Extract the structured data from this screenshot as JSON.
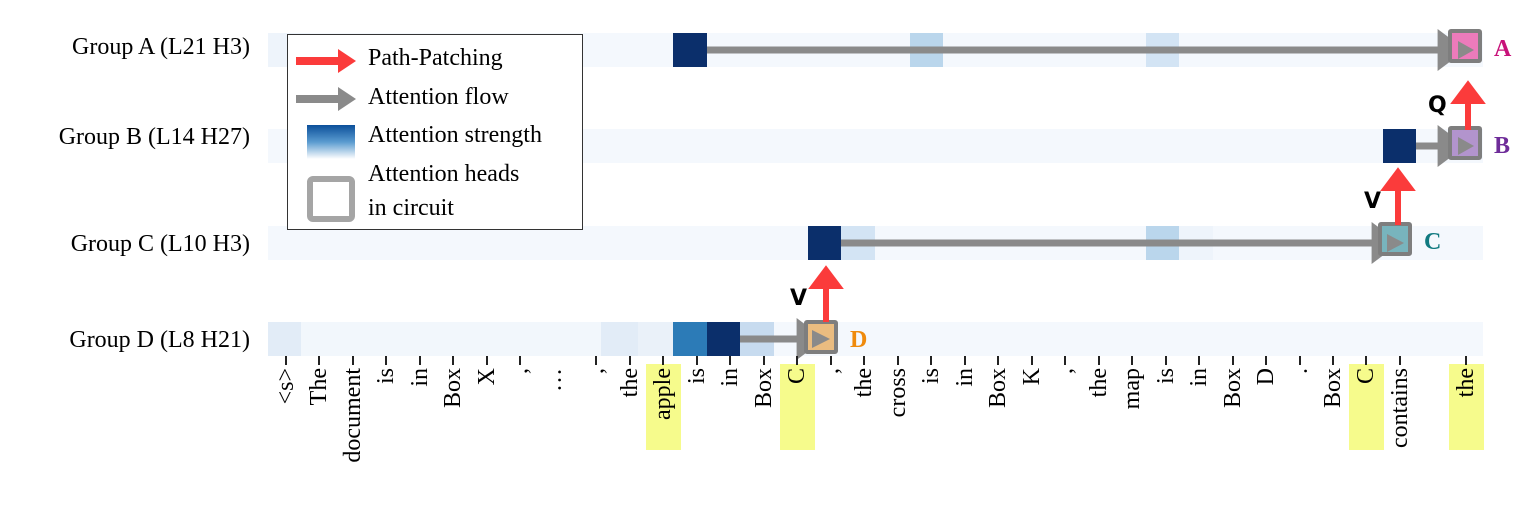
{
  "chart_data": {
    "type": "heatmap",
    "title": "",
    "rows": [
      {
        "name": "Group A (L21 H3)",
        "letter": "A",
        "letter_color": "#c8127a",
        "box_color": "#ec7bbb",
        "box_token_index": 28,
        "cells": [
          {
            "i": 1,
            "v": 0.08
          },
          {
            "i": 10,
            "v": 1.0
          },
          {
            "i": 16,
            "v": 0.3
          },
          {
            "i": 22,
            "v": 0.18
          }
        ]
      },
      {
        "name": "Group B (L14 H27)",
        "letter": "B",
        "letter_color": "#6e2c99",
        "box_color": "#b294cd",
        "box_token_index": 28,
        "cells": [
          {
            "i": 27,
            "v": 1.0
          }
        ]
      },
      {
        "name": "Group C (L10 H3)",
        "letter": "C",
        "letter_color": "#117a80",
        "box_color": "#78b4bd",
        "box_token_index": 27,
        "cells": [
          {
            "i": 13,
            "v": 1.0
          },
          {
            "i": 14,
            "v": 0.18
          },
          {
            "i": 22,
            "v": 0.3
          },
          {
            "i": 23,
            "v": 0.06
          }
        ]
      },
      {
        "name": "Group D (L8 H21)",
        "letter": "D",
        "letter_color": "#ef8a0c",
        "box_color": "#eabc80",
        "box_token_index": 13,
        "cells": [
          {
            "i": 0,
            "v": 0.12
          },
          {
            "i": 8,
            "v": 0.12
          },
          {
            "i": 9,
            "v": 0.08
          },
          {
            "i": 10,
            "v": 0.75
          },
          {
            "i": 11,
            "v": 1.0
          },
          {
            "i": 12,
            "v": 0.25
          }
        ]
      }
    ],
    "x_tokens": [
      "<s>",
      "The",
      "document",
      "is",
      "in",
      "Box",
      "X",
      ",",
      "...",
      ",",
      "the",
      "apple",
      "is",
      "in",
      "Box",
      "C",
      ",",
      "the",
      "cross",
      "is",
      "in",
      "Box",
      "K",
      ",",
      "the",
      "map",
      "is",
      "in",
      "Box",
      "D",
      ".",
      "Box",
      "C",
      "contains",
      "the"
    ],
    "highlighted_tokens": [
      "apple",
      "C",
      "C",
      "the"
    ],
    "path_patching_edges": [
      {
        "from": "Group D",
        "to": "Group C",
        "label": "V"
      },
      {
        "from": "Group C",
        "to": "Group B",
        "label": "V"
      },
      {
        "from": "Group B",
        "to": "Group A",
        "label": "Q"
      }
    ],
    "legend": [
      "Path-Patching",
      "Attention flow",
      "Attention strength",
      "Attention heads in circuit"
    ]
  },
  "labels": {
    "group_a": "Group A (L21 H3)",
    "group_b": "Group B (L14 H27)",
    "group_c": "Group C (L10 H3)",
    "group_d": "Group D (L8 H21)"
  },
  "legend": {
    "path_patching": "Path-Patching",
    "attention_flow": "Attention flow",
    "attention_strength": "Attention strength",
    "heads_line1": "Attention heads",
    "heads_line2": "in circuit"
  },
  "edge_labels": {
    "q": "Q",
    "v_cb": "V",
    "v_dc": "V"
  },
  "head_letters": {
    "a": "A",
    "b": "B",
    "c": "C",
    "d": "D"
  },
  "tokens": [
    "<s>",
    "The",
    "document",
    "is",
    "in",
    "Box",
    "X",
    ",",
    "…",
    ",",
    "the",
    "apple",
    "is",
    "in",
    "Box",
    "C",
    ",",
    "the",
    "cross",
    "is",
    "in",
    "Box",
    "K",
    ",",
    "the",
    "map",
    "is",
    "in",
    "Box",
    "D",
    ".",
    "Box",
    "C",
    "contains",
    "the"
  ],
  "colors": {
    "strip_bg": "#f4f8fd",
    "dark": "#0b2f6b",
    "mid": "#2c7bb7",
    "light": "#c7dbef",
    "lighter": "#dfeaf6",
    "path_patching": "#fb3b3b",
    "flow": "#8a8a8a",
    "highlight": "#f6fb8c"
  }
}
